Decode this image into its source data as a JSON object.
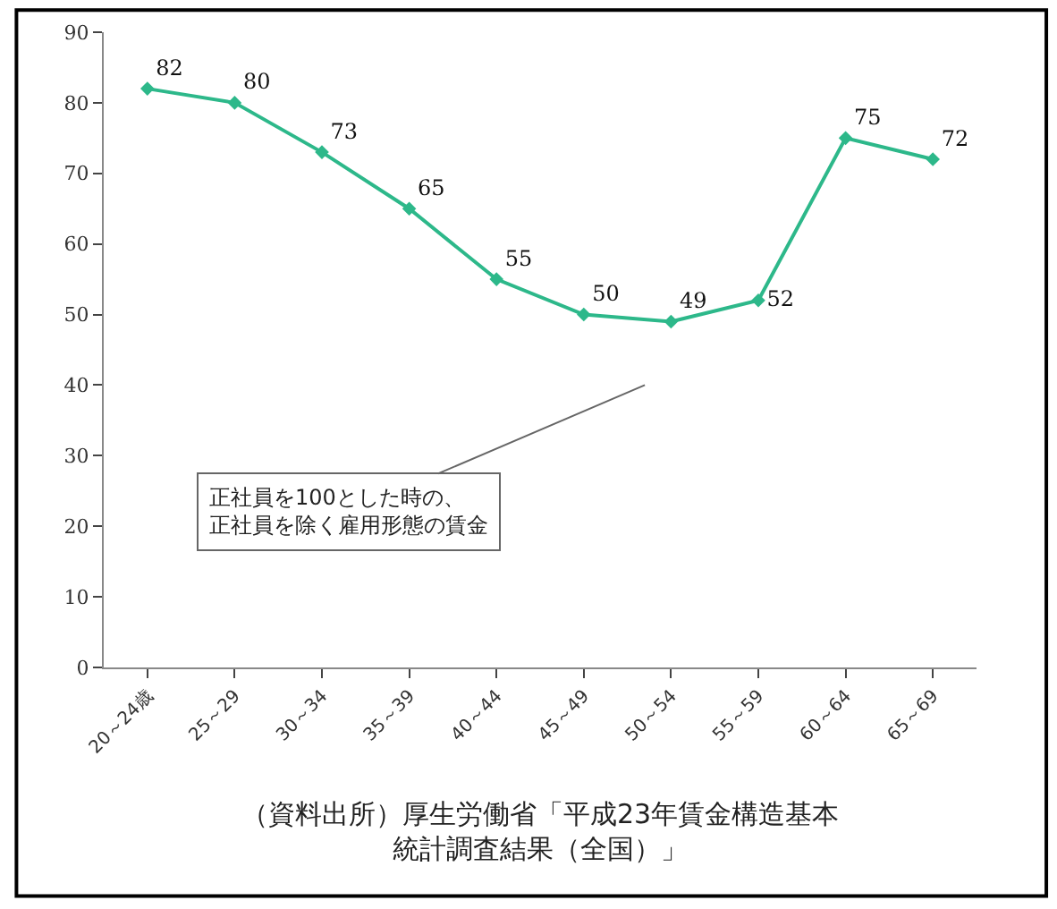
{
  "chart_data": {
    "type": "line",
    "categories": [
      "20～24歳",
      "25～29",
      "30～34",
      "35～39",
      "40～44",
      "45～49",
      "50～54",
      "55～59",
      "60～64",
      "65～69"
    ],
    "series": [
      {
        "color": "#2db88a",
        "values": [
          82,
          80,
          73,
          65,
          55,
          50,
          49,
          52,
          75,
          72
        ]
      }
    ],
    "ylim": [
      0,
      90
    ],
    "yticks": [
      0,
      10,
      20,
      30,
      40,
      50,
      60,
      70,
      80,
      90
    ],
    "data_labels": true,
    "marker": "diamond",
    "line_style": "solid",
    "grid": false,
    "legend": false,
    "annotations": [
      "正社員を100とした時の、正社員を除く雇用形態の賃金",
      "（資料出所）厚生労働省「平成23年賃金構造基本統計調査結果（全国）」"
    ]
  }
}
